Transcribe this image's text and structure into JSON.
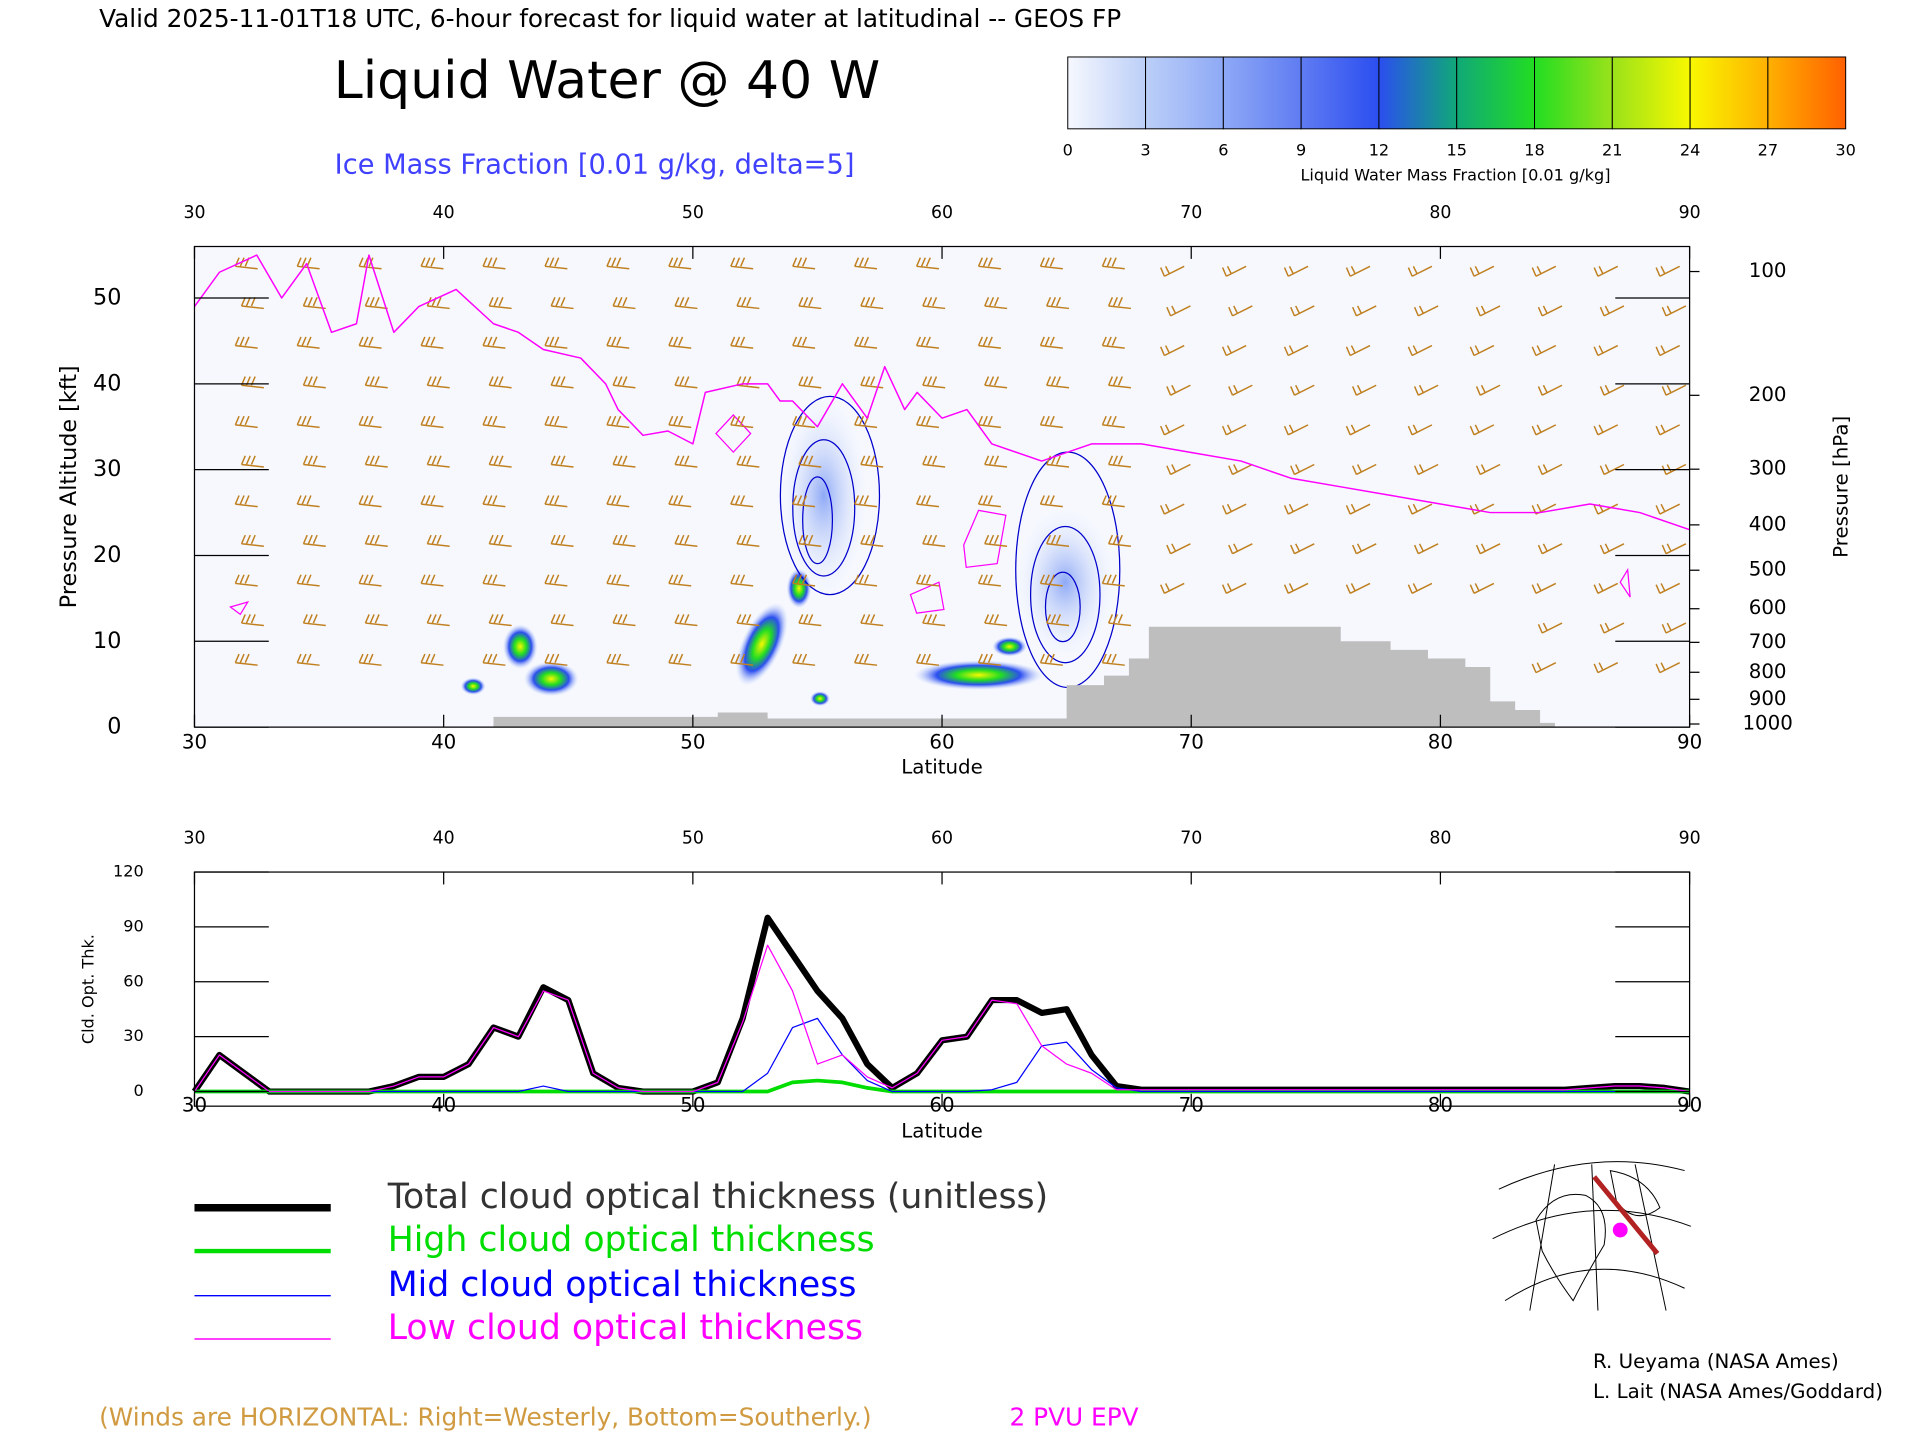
{
  "suptitle": "Valid 2025-11-01T18 UTC, 6-hour forecast for liquid water at latitudinal -- GEOS FP",
  "credits": [
    "R. Ueyama (NASA Ames)",
    "L. Lait (NASA Ames/Goddard)"
  ],
  "chart_data": [
    {
      "type": "contour",
      "title": "Liquid Water @ 40 W",
      "subtitle": "Ice Mass Fraction [0.01 g/kg, delta=5]",
      "xlabel": "Latitude",
      "ylabel": "Pressure Altitude [kft]",
      "y2label": "Pressure [hPa]",
      "xlim": [
        30,
        90
      ],
      "xticks": [
        30,
        40,
        50,
        60,
        70,
        80,
        90
      ],
      "ylim": [
        0,
        56
      ],
      "yticks": [
        0,
        10,
        20,
        30,
        40,
        50
      ],
      "y2ticks": [
        100,
        200,
        300,
        400,
        500,
        600,
        700,
        800,
        900,
        1000
      ],
      "colorbar": {
        "label": "Liquid Water Mass Fraction [0.01 g/kg]",
        "ticks": [
          0,
          3,
          6,
          9,
          12,
          15,
          18,
          21,
          24,
          27,
          30
        ],
        "colors": [
          "#f6f8fe",
          "#bccff8",
          "#8ea9f6",
          "#5f7cf2",
          "#2b4ef0",
          "#10a878",
          "#22dd22",
          "#9ae21a",
          "#f8f800",
          "#ffb000",
          "#ff6000"
        ]
      },
      "annotations": [
        "(Winds are HORIZONTAL: Right=Westerly, Bottom=Southerly.)"
      ],
      "series": [
        {
          "type": "line",
          "name": "2 PVU EPV",
          "color": "#ff00ff",
          "x": [
            30,
            31,
            32.5,
            33.5,
            34.5,
            35.5,
            36.5,
            37,
            38,
            39,
            40.5,
            42,
            43,
            44,
            45.5,
            46.5,
            47,
            48,
            49,
            50,
            50.5,
            52,
            53,
            53.5,
            54,
            55,
            56,
            57,
            57.7,
            58.5,
            59,
            60,
            61,
            62,
            64,
            66,
            68,
            70,
            72,
            74,
            76,
            78,
            80,
            82,
            84,
            86,
            88,
            90
          ],
          "values": [
            49,
            53,
            55,
            50,
            54,
            46,
            47,
            55,
            46,
            49,
            51,
            47,
            46,
            44,
            43,
            40,
            37,
            34,
            34.5,
            33,
            39,
            40,
            40,
            38,
            38,
            35,
            40,
            36,
            42,
            37,
            39,
            36,
            37,
            33,
            31,
            33,
            33,
            32,
            31,
            29,
            28,
            27,
            26,
            25,
            25,
            26,
            25,
            23
          ]
        },
        {
          "type": "area",
          "color": "#bebebe",
          "x": [
            42,
            51,
            53,
            65,
            66.5,
            67.5,
            68.3,
            76,
            78,
            79.5,
            81,
            82,
            83,
            84
          ],
          "values": [
            1.2,
            1.7,
            1,
            4.9,
            6,
            8,
            11.7,
            10,
            9,
            8,
            7,
            3,
            2,
            0.5
          ]
        }
      ]
    },
    {
      "type": "line",
      "xlabel": "Latitude",
      "ylabel": "Cld. Opt. Thk.",
      "xlim": [
        30,
        90
      ],
      "xticks": [
        30,
        40,
        50,
        60,
        70,
        80,
        90
      ],
      "ylim": [
        -8,
        120
      ],
      "yticks": [
        0,
        30,
        60,
        90,
        120
      ],
      "x": [
        30,
        31,
        32,
        33,
        34,
        35,
        36,
        37,
        38,
        39,
        40,
        41,
        42,
        43,
        44,
        45,
        46,
        47,
        48,
        49,
        50,
        51,
        52,
        53,
        54,
        55,
        56,
        57,
        58,
        59,
        60,
        61,
        62,
        63,
        64,
        65,
        66,
        67,
        68,
        69,
        70,
        71,
        72,
        73,
        74,
        75,
        76,
        77,
        78,
        79,
        80,
        81,
        82,
        83,
        84,
        85,
        86,
        87,
        88,
        89,
        90
      ],
      "series": [
        {
          "name": "Total cloud optical thickness (unitless)",
          "color": "#000000",
          "values": [
            0,
            20,
            10,
            0,
            0,
            0,
            0,
            0,
            3,
            8,
            8,
            15,
            35,
            30,
            57,
            50,
            10,
            2,
            0,
            0,
            0,
            5,
            40,
            95,
            75,
            55,
            40,
            15,
            2,
            10,
            28,
            30,
            50,
            50,
            43,
            45,
            20,
            3,
            1,
            1,
            1,
            1,
            1,
            1,
            1,
            1,
            1,
            1,
            1,
            1,
            1,
            1,
            1,
            1,
            1,
            1,
            2,
            3,
            3,
            2,
            0
          ]
        },
        {
          "name": "High cloud optical thickness",
          "color": "#00dd00",
          "values": [
            0,
            0,
            0,
            0,
            0,
            0,
            0,
            0,
            0,
            0,
            0,
            0,
            0,
            0,
            0,
            0,
            0,
            0,
            0,
            0,
            0,
            0,
            0,
            0,
            5,
            6,
            5,
            2,
            0,
            0,
            0,
            0,
            0,
            0,
            0,
            0,
            0,
            0,
            0,
            0,
            0,
            0,
            0,
            0,
            0,
            0,
            0,
            0,
            0,
            0,
            0,
            0,
            0,
            0,
            0,
            0,
            0,
            0,
            0,
            0,
            0
          ]
        },
        {
          "name": "Mid cloud optical thickness",
          "color": "#0000ff",
          "values": [
            0,
            0,
            0,
            0,
            0,
            0,
            0,
            0,
            0,
            0,
            0,
            0,
            0,
            0,
            3,
            0,
            0,
            0,
            0,
            0,
            0,
            0,
            0,
            10,
            35,
            40,
            20,
            6,
            0,
            0,
            0,
            0,
            1,
            5,
            25,
            27,
            12,
            2,
            0,
            0,
            0,
            0,
            0,
            0,
            0,
            0,
            0,
            0,
            0,
            0,
            0,
            0,
            0,
            0,
            0,
            0,
            0,
            0,
            0,
            0,
            0
          ]
        },
        {
          "name": "Low cloud optical thickness",
          "color": "#ff00ff",
          "values": [
            0,
            20,
            10,
            0,
            0,
            0,
            0,
            0,
            3,
            8,
            8,
            15,
            35,
            30,
            55,
            50,
            10,
            2,
            0,
            0,
            0,
            5,
            38,
            80,
            55,
            15,
            20,
            8,
            2,
            10,
            28,
            30,
            50,
            48,
            25,
            15,
            10,
            1,
            1,
            1,
            1,
            1,
            1,
            1,
            1,
            1,
            1,
            1,
            1,
            1,
            1,
            1,
            1,
            1,
            1,
            1,
            2,
            3,
            3,
            2,
            0
          ]
        }
      ]
    }
  ]
}
